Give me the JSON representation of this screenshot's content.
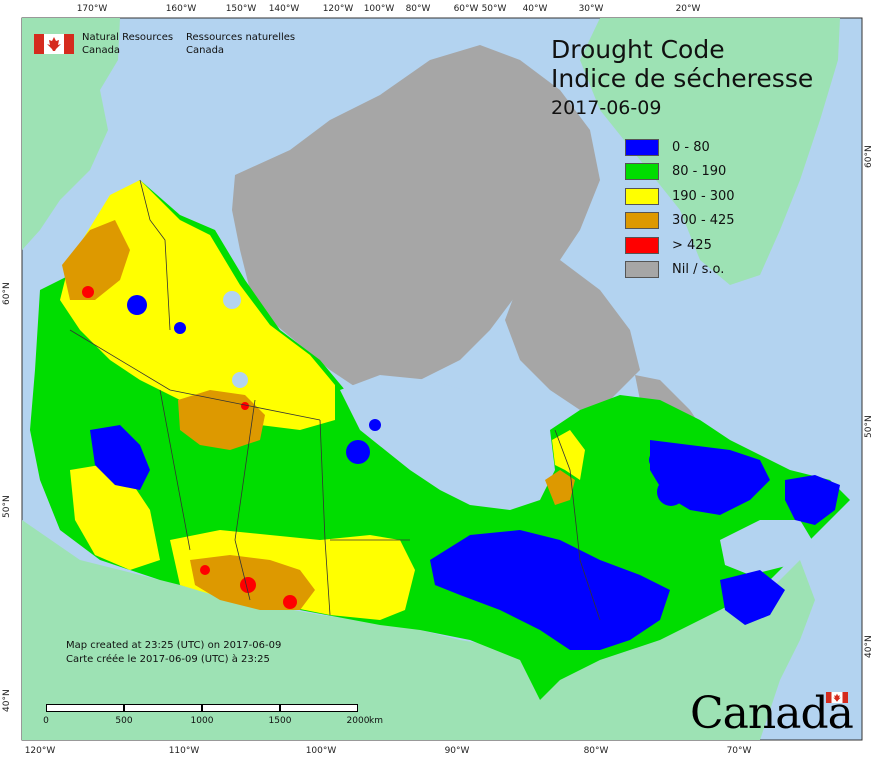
{
  "title": {
    "english": "Drought Code",
    "french": "Indice de sécheresse",
    "date": "2017-06-09"
  },
  "agency": {
    "english_line1": "Natural Resources",
    "english_line2": "Canada",
    "french_line1": "Ressources naturelles",
    "french_line2": "Canada"
  },
  "legend": [
    {
      "label": "0 - 80",
      "color": "#0000ff"
    },
    {
      "label": "80 - 190",
      "color": "#00dd00"
    },
    {
      "label": "190 - 300",
      "color": "#ffff00"
    },
    {
      "label": "300 - 425",
      "color": "#dd9900"
    },
    {
      "label": "> 425",
      "color": "#ff0000"
    },
    {
      "label": "Nil / s.o.",
      "color": "#a6a6a6"
    }
  ],
  "colors": {
    "ocean": "#b3d3f0",
    "land_outside": "#9de2b4",
    "no_data": "#a6a6a6"
  },
  "credit": {
    "english": "Map created at 23:25 (UTC) on 2017-06-09",
    "french": "Carte créée le 2017-06-09 (UTC) à 23:25"
  },
  "scale": {
    "labels": [
      "0",
      "500",
      "1000",
      "1500",
      "2000"
    ],
    "unit": "km"
  },
  "graticule": {
    "top": [
      "170°W",
      "160°W",
      "150°W",
      "140°W",
      "120°W",
      "100°W",
      "80°W",
      "60°W",
      "50°W",
      "40°W",
      "30°W",
      "20°W"
    ],
    "bottom": [
      "120°W",
      "110°W",
      "100°W",
      "90°W",
      "80°W",
      "70°W"
    ],
    "left": [
      "60°N",
      "50°N",
      "40°N"
    ],
    "right": [
      "60°N",
      "50°N",
      "40°N"
    ]
  },
  "wordmark": "Canada"
}
